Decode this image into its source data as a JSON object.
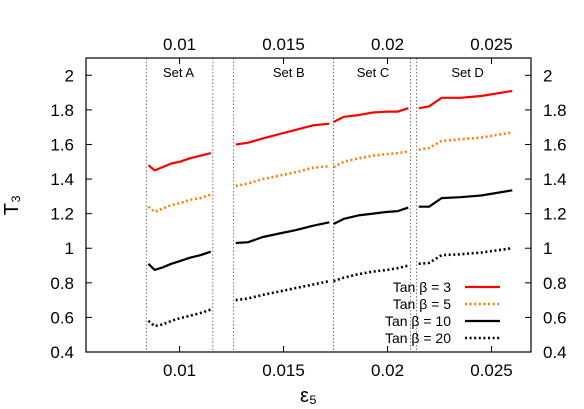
{
  "chart_data": {
    "type": "line",
    "ylabel": "T₃",
    "xlabel": "ε₅",
    "xlim": [
      0.0055,
      0.0269
    ],
    "ylim": [
      0.4,
      2.1
    ],
    "x_ticks": [
      0.01,
      0.015,
      0.02,
      0.025
    ],
    "x_tick_labels": [
      "0.01",
      "0.015",
      "0.02",
      "0.025"
    ],
    "top_x_ticks": [
      0.01,
      0.015,
      0.02,
      0.025
    ],
    "top_x_tick_labels": [
      "0.01",
      "0.015",
      "0.02",
      "0.025"
    ],
    "y_ticks": [
      0.4,
      0.6,
      0.8,
      1.0,
      1.2,
      1.4,
      1.6,
      1.8,
      2.0
    ],
    "y_tick_labels": [
      "0.4",
      "0.6",
      "0.8",
      "1",
      "1.2",
      "1.4",
      "1.6",
      "1.8",
      "2"
    ],
    "grid": false,
    "legend_position": "bottom-right",
    "separators": [
      0.0084,
      0.0116,
      0.0126,
      0.0174,
      0.0211,
      0.0214
    ],
    "sets": [
      {
        "label": "Set A",
        "x": 0.00995
      },
      {
        "label": "Set B",
        "x": 0.01525
      },
      {
        "label": "Set C",
        "x": 0.0193
      },
      {
        "label": "Set D",
        "x": 0.02385
      }
    ],
    "series": [
      {
        "name": "Tan β =   3",
        "color": "#ff0000",
        "style": "solid",
        "segments": [
          [
            [
              0.0085,
              1.48
            ],
            [
              0.0088,
              1.45
            ],
            [
              0.0092,
              1.47
            ],
            [
              0.0096,
              1.49
            ],
            [
              0.01,
              1.5
            ],
            [
              0.0105,
              1.52
            ],
            [
              0.011,
              1.535
            ],
            [
              0.0115,
              1.55
            ]
          ],
          [
            [
              0.0127,
              1.6
            ],
            [
              0.0133,
              1.61
            ],
            [
              0.014,
              1.635
            ],
            [
              0.0148,
              1.66
            ],
            [
              0.0156,
              1.685
            ],
            [
              0.0164,
              1.71
            ],
            [
              0.0172,
              1.72
            ]
          ],
          [
            [
              0.0174,
              1.73
            ],
            [
              0.0179,
              1.76
            ],
            [
              0.0186,
              1.77
            ],
            [
              0.0193,
              1.785
            ],
            [
              0.02,
              1.79
            ],
            [
              0.0205,
              1.79
            ],
            [
              0.021,
              1.81
            ]
          ],
          [
            [
              0.0215,
              1.81
            ],
            [
              0.022,
              1.82
            ],
            [
              0.0226,
              1.87
            ],
            [
              0.0235,
              1.87
            ],
            [
              0.0245,
              1.88
            ],
            [
              0.026,
              1.91
            ]
          ]
        ]
      },
      {
        "name": "Tan β =   5",
        "color": "#ff8000",
        "style": "dotted",
        "segments": [
          [
            [
              0.0085,
              1.24
            ],
            [
              0.0088,
              1.21
            ],
            [
              0.0092,
              1.23
            ],
            [
              0.0096,
              1.25
            ],
            [
              0.01,
              1.26
            ],
            [
              0.0105,
              1.28
            ],
            [
              0.011,
              1.29
            ],
            [
              0.0115,
              1.31
            ]
          ],
          [
            [
              0.0127,
              1.36
            ],
            [
              0.0133,
              1.375
            ],
            [
              0.014,
              1.4
            ],
            [
              0.0148,
              1.42
            ],
            [
              0.0156,
              1.44
            ],
            [
              0.0164,
              1.465
            ],
            [
              0.0172,
              1.475
            ]
          ],
          [
            [
              0.0174,
              1.47
            ],
            [
              0.0179,
              1.5
            ],
            [
              0.0186,
              1.52
            ],
            [
              0.0193,
              1.535
            ],
            [
              0.02,
              1.545
            ],
            [
              0.0205,
              1.55
            ],
            [
              0.021,
              1.56
            ]
          ],
          [
            [
              0.0215,
              1.57
            ],
            [
              0.022,
              1.58
            ],
            [
              0.0226,
              1.62
            ],
            [
              0.0235,
              1.63
            ],
            [
              0.0245,
              1.64
            ],
            [
              0.026,
              1.67
            ]
          ]
        ]
      },
      {
        "name": "Tan β = 10",
        "color": "#000000",
        "style": "solid",
        "segments": [
          [
            [
              0.0085,
              0.91
            ],
            [
              0.0088,
              0.875
            ],
            [
              0.0092,
              0.89
            ],
            [
              0.0096,
              0.91
            ],
            [
              0.01,
              0.925
            ],
            [
              0.0105,
              0.945
            ],
            [
              0.011,
              0.96
            ],
            [
              0.0115,
              0.98
            ]
          ],
          [
            [
              0.0127,
              1.03
            ],
            [
              0.0133,
              1.035
            ],
            [
              0.014,
              1.065
            ],
            [
              0.0148,
              1.085
            ],
            [
              0.0156,
              1.105
            ],
            [
              0.0164,
              1.13
            ],
            [
              0.0172,
              1.15
            ]
          ],
          [
            [
              0.0174,
              1.14
            ],
            [
              0.0179,
              1.17
            ],
            [
              0.0186,
              1.19
            ],
            [
              0.0193,
              1.2
            ],
            [
              0.02,
              1.21
            ],
            [
              0.0205,
              1.215
            ],
            [
              0.021,
              1.235
            ]
          ],
          [
            [
              0.0215,
              1.24
            ],
            [
              0.022,
              1.24
            ],
            [
              0.0226,
              1.29
            ],
            [
              0.0235,
              1.295
            ],
            [
              0.0245,
              1.305
            ],
            [
              0.026,
              1.335
            ]
          ]
        ]
      },
      {
        "name": "Tan β = 20",
        "color": "#000000",
        "style": "dotted",
        "segments": [
          [
            [
              0.0085,
              0.58
            ],
            [
              0.0088,
              0.55
            ],
            [
              0.0092,
              0.56
            ],
            [
              0.0096,
              0.58
            ],
            [
              0.01,
              0.595
            ],
            [
              0.0105,
              0.61
            ],
            [
              0.011,
              0.625
            ],
            [
              0.0115,
              0.645
            ]
          ],
          [
            [
              0.0127,
              0.7
            ],
            [
              0.0133,
              0.71
            ],
            [
              0.014,
              0.73
            ],
            [
              0.0148,
              0.75
            ],
            [
              0.0156,
              0.77
            ],
            [
              0.0164,
              0.79
            ],
            [
              0.0172,
              0.81
            ]
          ],
          [
            [
              0.0174,
              0.81
            ],
            [
              0.0179,
              0.83
            ],
            [
              0.0186,
              0.85
            ],
            [
              0.0193,
              0.865
            ],
            [
              0.02,
              0.875
            ],
            [
              0.0205,
              0.885
            ],
            [
              0.021,
              0.9
            ]
          ],
          [
            [
              0.0215,
              0.91
            ],
            [
              0.022,
              0.915
            ],
            [
              0.0226,
              0.96
            ],
            [
              0.0235,
              0.965
            ],
            [
              0.0245,
              0.975
            ],
            [
              0.026,
              1.0
            ]
          ]
        ]
      }
    ]
  }
}
